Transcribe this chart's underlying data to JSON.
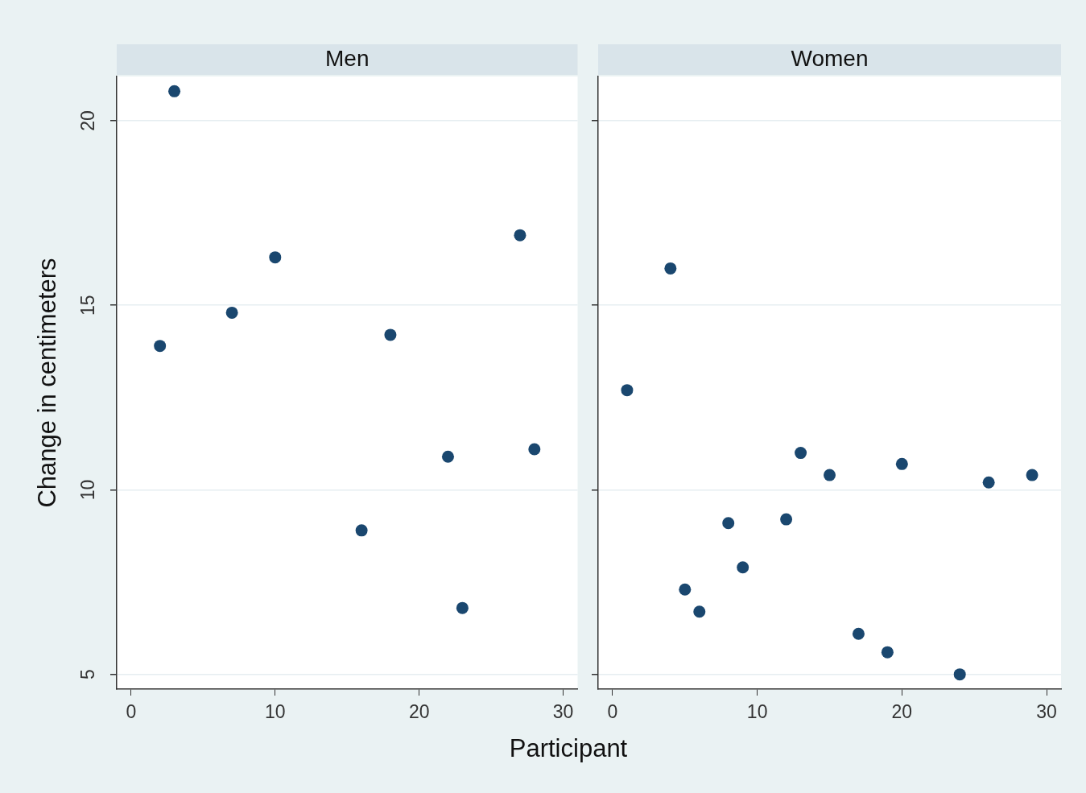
{
  "chart_data": [
    {
      "type": "scatter",
      "title": "Men",
      "xlabel": "Participant",
      "ylabel": "Change in centimeters",
      "x": [
        2,
        3,
        7,
        10,
        16,
        18,
        22,
        23,
        27,
        28
      ],
      "series": [
        {
          "color": "#1a476f",
          "values": [
            13.9,
            20.8,
            14.8,
            16.3,
            8.9,
            14.2,
            10.9,
            6.8,
            16.9,
            11.1
          ]
        }
      ],
      "xlim": [
        -1,
        31
      ],
      "xticks": [
        0,
        10,
        20,
        30
      ],
      "ylim": [
        4.6,
        21.2
      ],
      "yticks": [
        5,
        10,
        15,
        20
      ],
      "grid": "y",
      "marker": "circle"
    },
    {
      "type": "scatter",
      "title": "Women",
      "x": [
        1,
        4,
        5,
        6,
        8,
        9,
        12,
        13,
        15,
        17,
        19,
        20,
        24,
        26,
        29
      ],
      "series": [
        {
          "color": "#1a476f",
          "values": [
            12.7,
            16.0,
            7.3,
            6.7,
            9.1,
            7.9,
            9.2,
            11.0,
            10.4,
            6.1,
            5.6,
            10.7,
            5.0,
            10.2,
            10.4
          ]
        }
      ],
      "xlim": [
        -1,
        31
      ],
      "xticks": [
        0,
        10,
        20,
        30
      ],
      "ylim": [
        4.6,
        21.2
      ],
      "yticks": [
        5,
        10,
        15,
        20
      ],
      "grid": "y",
      "marker": "circle",
      "tick_labels": "x"
    }
  ]
}
